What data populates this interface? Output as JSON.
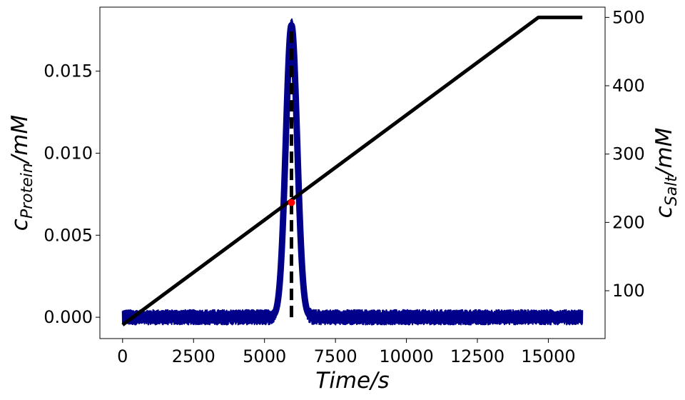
{
  "chart_data": {
    "type": "line",
    "title": "",
    "xlabel": "Time/s",
    "ylabel_left": {
      "base": "c",
      "sub": "Protein",
      "unit": "/mM"
    },
    "ylabel_right": {
      "base": "c",
      "sub": "Salt",
      "unit": "/mM"
    },
    "xlim": [
      -800,
      17000
    ],
    "ylim_left": [
      -0.0013,
      0.0189
    ],
    "ylim_right": [
      30,
      515
    ],
    "x_ticks": [
      0,
      2500,
      5000,
      7500,
      10000,
      12500,
      15000
    ],
    "x_tick_labels": [
      "0",
      "2500",
      "5000",
      "7500",
      "10000",
      "12500",
      "15000"
    ],
    "y_left_ticks": [
      0.0,
      0.005,
      0.01,
      0.015
    ],
    "y_left_tick_labels": [
      "0.000",
      "0.005",
      "0.010",
      "0.015"
    ],
    "y_right_ticks": [
      100,
      200,
      300,
      400,
      500
    ],
    "y_right_tick_labels": [
      "100",
      "200",
      "300",
      "400",
      "500"
    ],
    "grid": false,
    "legend": "none",
    "series": [
      {
        "axis": "left",
        "color": "#00008b",
        "kind": "noisy-peak",
        "x_range": [
          0,
          16200
        ],
        "baseline": 0.0,
        "noise_band": [
          -0.00045,
          0.00045
        ],
        "peak_center": 5950,
        "peak_height": 0.0178,
        "peak_sigma": 200
      },
      {
        "axis": "right",
        "color": "#000000",
        "kind": "line",
        "x": [
          0,
          14650,
          16200
        ],
        "y": [
          50,
          500,
          500
        ]
      }
    ],
    "annotations": [
      {
        "kind": "dashed-vline",
        "color": "#000000",
        "x": 5950,
        "y_left_range": [
          0.0,
          0.0176
        ]
      },
      {
        "kind": "point",
        "color": "#ff0000",
        "x": 5950,
        "y_right": 229
      }
    ]
  }
}
